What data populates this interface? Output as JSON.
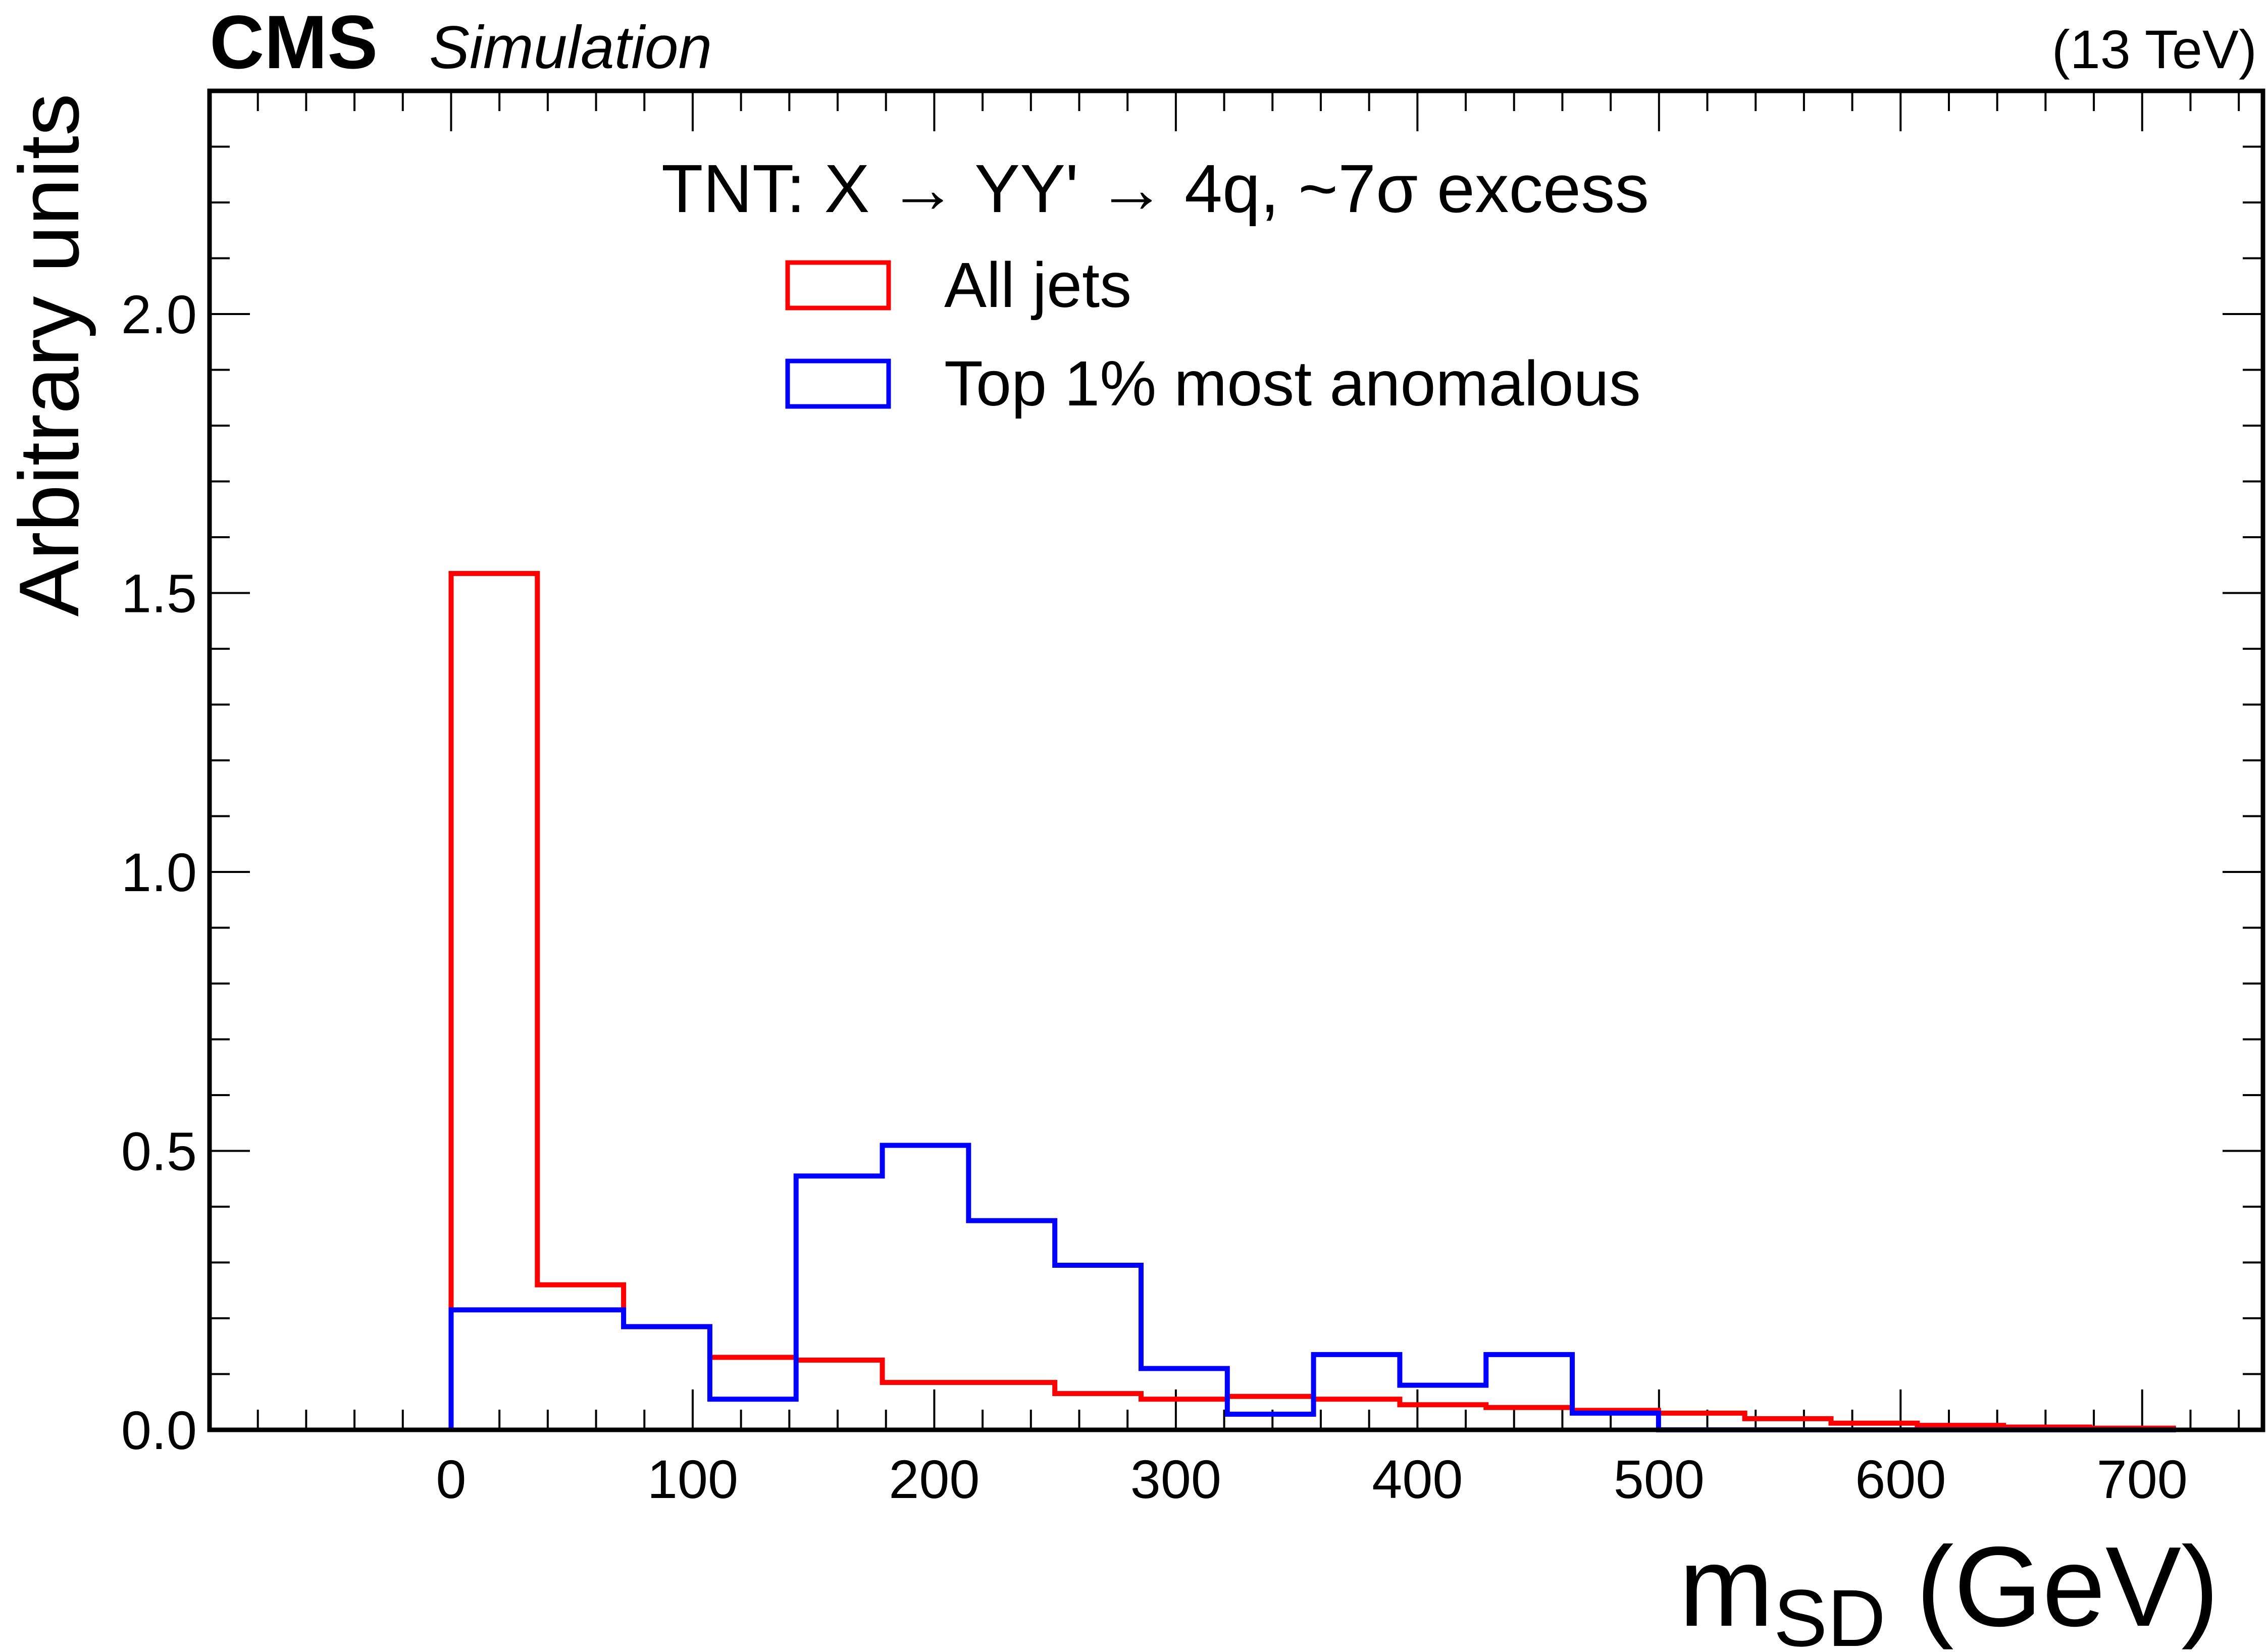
{
  "header": {
    "experiment": "CMS",
    "status": "Simulation",
    "energy": "(13 TeV)"
  },
  "legend": {
    "header": "TNT: X  →  YY'  →  4q,  ~7σ excess"
  },
  "axes": {
    "xlabel_main": "m",
    "xlabel_sub": "SD",
    "xlabel_unit": "(GeV)",
    "ylabel": "Arbitrary units"
  },
  "chart_data": {
    "type": "histogram",
    "x_unit": "GeV",
    "xlim": [
      -100,
      750
    ],
    "ylim": [
      0,
      2.4
    ],
    "x_ticks": [
      0,
      100,
      200,
      300,
      400,
      500,
      600,
      700
    ],
    "x_tick_labels": [
      "0",
      "100",
      "200",
      "300",
      "400",
      "500",
      "600",
      "700"
    ],
    "y_ticks": [
      0.0,
      0.5,
      1.0,
      1.5,
      2.0
    ],
    "y_tick_labels": [
      "0.0",
      "0.5",
      "1.0",
      "1.5",
      "2.0"
    ],
    "bin_edges": [
      0,
      35.7,
      71.4,
      107.1,
      142.8,
      178.5,
      214.2,
      249.9,
      285.6,
      321.3,
      357.0,
      392.7,
      428.4,
      464.1,
      499.8,
      535.5,
      571.2,
      606.9,
      642.6,
      678.3,
      714.0
    ],
    "series": [
      {
        "name": "All jets",
        "color": "#ff0000",
        "values": [
          1.535,
          0.26,
          0.185,
          0.13,
          0.125,
          0.085,
          0.085,
          0.065,
          0.055,
          0.06,
          0.055,
          0.045,
          0.04,
          0.035,
          0.03,
          0.02,
          0.012,
          0.008,
          0.005,
          0.003
        ]
      },
      {
        "name": "Top 1% most anomalous",
        "color": "#0000ff",
        "values": [
          0.215,
          0.215,
          0.185,
          0.055,
          0.455,
          0.51,
          0.375,
          0.295,
          0.11,
          0.028,
          0.135,
          0.08,
          0.135,
          0.03,
          0.0,
          0.0,
          0.0,
          0.0,
          0.0,
          0.0
        ]
      }
    ]
  }
}
